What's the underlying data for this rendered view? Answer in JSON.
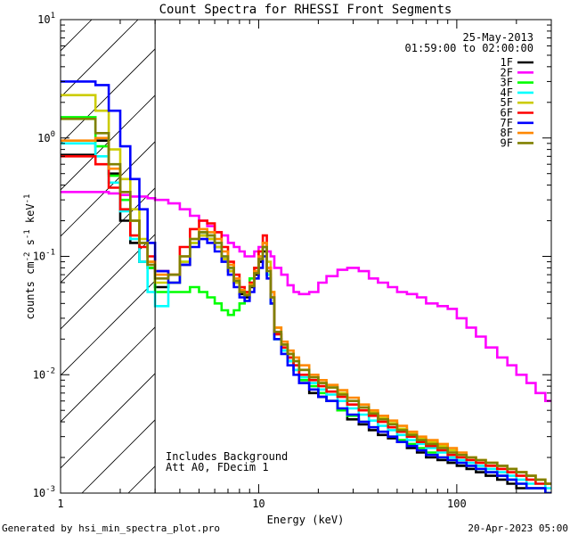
{
  "chart_data": {
    "type": "line",
    "title": "Count Spectra for RHESSI Front Segments",
    "xlabel": "Energy (keV)",
    "ylabel_parts": {
      "prefix": "counts cm",
      "exp1": "-2",
      "mid": " s",
      "exp2": "-1",
      "suffix": " keV",
      "exp3": "-1"
    },
    "x_scale": "log",
    "y_scale": "log",
    "xlim": [
      1,
      300
    ],
    "ylim": [
      0.001,
      10
    ],
    "x_ticks": [
      1,
      10,
      100
    ],
    "x_tick_labels": [
      "1",
      "10",
      "100"
    ],
    "y_ticks": [
      0.001,
      0.01,
      0.1,
      1,
      10
    ],
    "y_tick_base": "10",
    "y_tick_exps": [
      "-3",
      "-2",
      "-1",
      "0",
      "1"
    ],
    "date": "25-May-2013",
    "time_range": "01:59:00 to 02:00:00",
    "attenuator_cutoff_kev": 3,
    "annotations": [
      "Includes Background",
      "Att A0, FDecim 1"
    ],
    "footer_left": "Generated by hsi_min_spectra_plot.pro",
    "footer_right": "20-Apr-2023 05:00",
    "energies": [
      1.0,
      1.5,
      1.5,
      1.75,
      2,
      2.25,
      2.5,
      2.75,
      3,
      3.5,
      4,
      4.5,
      5,
      5.5,
      6,
      6.5,
      7,
      7.5,
      8,
      8.5,
      9,
      9.5,
      10,
      10.5,
      11,
      11.5,
      12,
      13,
      14,
      15,
      16,
      18,
      20,
      22,
      25,
      28,
      32,
      36,
      40,
      45,
      50,
      56,
      63,
      70,
      80,
      90,
      100,
      112,
      125,
      140,
      160,
      180,
      200,
      225,
      250,
      280
    ],
    "series": [
      {
        "name": "1F",
        "color": "#000000",
        "values": [
          0.72,
          0.72,
          0.95,
          0.5,
          0.2,
          0.13,
          0.09,
          0.08,
          0.055,
          0.06,
          0.085,
          0.13,
          0.15,
          0.14,
          0.12,
          0.095,
          0.075,
          0.06,
          0.048,
          0.045,
          0.055,
          0.07,
          0.09,
          0.11,
          0.07,
          0.04,
          0.022,
          0.016,
          0.013,
          0.011,
          0.009,
          0.007,
          0.0065,
          0.006,
          0.005,
          0.0042,
          0.0038,
          0.0034,
          0.0031,
          0.0029,
          0.0027,
          0.0024,
          0.0022,
          0.002,
          0.0019,
          0.0018,
          0.0017,
          0.0016,
          0.0015,
          0.0014,
          0.0013,
          0.0012,
          0.0011,
          0.0011,
          0.0011,
          0.001
        ]
      },
      {
        "name": "2F",
        "color": "#ff00ff",
        "values": [
          0.35,
          0.35,
          0.35,
          0.34,
          0.33,
          0.32,
          0.32,
          0.31,
          0.3,
          0.28,
          0.25,
          0.22,
          0.2,
          0.18,
          0.16,
          0.15,
          0.13,
          0.12,
          0.11,
          0.1,
          0.1,
          0.11,
          0.12,
          0.13,
          0.11,
          0.1,
          0.08,
          0.07,
          0.057,
          0.05,
          0.048,
          0.05,
          0.06,
          0.068,
          0.077,
          0.08,
          0.075,
          0.065,
          0.06,
          0.055,
          0.05,
          0.048,
          0.045,
          0.04,
          0.038,
          0.036,
          0.03,
          0.025,
          0.021,
          0.017,
          0.014,
          0.012,
          0.01,
          0.0085,
          0.007,
          0.006
        ]
      },
      {
        "name": "3F",
        "color": "#00ff00",
        "values": [
          1.5,
          1.5,
          0.85,
          0.48,
          0.3,
          0.2,
          0.13,
          0.08,
          0.05,
          0.05,
          0.05,
          0.055,
          0.05,
          0.045,
          0.04,
          0.035,
          0.032,
          0.035,
          0.04,
          0.05,
          0.065,
          0.08,
          0.1,
          0.12,
          0.07,
          0.04,
          0.02,
          0.016,
          0.014,
          0.012,
          0.009,
          0.008,
          0.007,
          0.006,
          0.005,
          0.0045,
          0.004,
          0.0036,
          0.0033,
          0.003,
          0.0028,
          0.0026,
          0.0024,
          0.0022,
          0.002,
          0.0019,
          0.0018,
          0.0017,
          0.0016,
          0.0015,
          0.0014,
          0.0013,
          0.0012,
          0.0011,
          0.0011,
          0.001
        ]
      },
      {
        "name": "4F",
        "color": "#00ffff",
        "values": [
          0.9,
          0.9,
          0.7,
          0.42,
          0.24,
          0.14,
          0.09,
          0.05,
          0.038,
          0.06,
          0.09,
          0.13,
          0.16,
          0.15,
          0.13,
          0.1,
          0.08,
          0.065,
          0.052,
          0.048,
          0.058,
          0.075,
          0.1,
          0.12,
          0.07,
          0.04,
          0.02,
          0.016,
          0.013,
          0.011,
          0.0095,
          0.0085,
          0.0075,
          0.0068,
          0.006,
          0.0052,
          0.0046,
          0.0041,
          0.0037,
          0.0034,
          0.0031,
          0.0028,
          0.0026,
          0.0024,
          0.0022,
          0.002,
          0.0019,
          0.0018,
          0.0017,
          0.0016,
          0.0015,
          0.0014,
          0.0013,
          0.0012,
          0.0012,
          0.0011
        ]
      },
      {
        "name": "5F",
        "color": "#cccc00",
        "values": [
          2.3,
          2.3,
          1.7,
          0.8,
          0.45,
          0.25,
          0.14,
          0.09,
          0.06,
          0.06,
          0.09,
          0.13,
          0.15,
          0.14,
          0.12,
          0.095,
          0.075,
          0.06,
          0.05,
          0.047,
          0.06,
          0.08,
          0.11,
          0.13,
          0.09,
          0.05,
          0.025,
          0.018,
          0.015,
          0.013,
          0.011,
          0.0095,
          0.0085,
          0.0078,
          0.007,
          0.006,
          0.0053,
          0.0048,
          0.0043,
          0.0039,
          0.0035,
          0.0032,
          0.0029,
          0.0027,
          0.0025,
          0.0023,
          0.0021,
          0.002,
          0.0019,
          0.0018,
          0.0017,
          0.0016,
          0.0015,
          0.0014,
          0.0013,
          0.0012
        ]
      },
      {
        "name": "6F",
        "color": "#ff0000",
        "values": [
          0.7,
          0.7,
          0.6,
          0.38,
          0.25,
          0.15,
          0.12,
          0.1,
          0.075,
          0.07,
          0.12,
          0.17,
          0.2,
          0.19,
          0.16,
          0.12,
          0.09,
          0.07,
          0.055,
          0.05,
          0.06,
          0.08,
          0.11,
          0.15,
          0.08,
          0.045,
          0.022,
          0.017,
          0.014,
          0.012,
          0.01,
          0.009,
          0.008,
          0.0072,
          0.0065,
          0.0056,
          0.005,
          0.0045,
          0.004,
          0.0036,
          0.0033,
          0.003,
          0.0027,
          0.0025,
          0.0023,
          0.0021,
          0.002,
          0.0019,
          0.0018,
          0.0017,
          0.0016,
          0.0015,
          0.0014,
          0.0013,
          0.0012,
          0.0012
        ]
      },
      {
        "name": "7F",
        "color": "#0000ff",
        "values": [
          3.0,
          3.0,
          2.8,
          1.7,
          0.85,
          0.45,
          0.25,
          0.13,
          0.075,
          0.06,
          0.085,
          0.12,
          0.14,
          0.13,
          0.11,
          0.09,
          0.07,
          0.055,
          0.045,
          0.042,
          0.05,
          0.065,
          0.08,
          0.1,
          0.065,
          0.04,
          0.02,
          0.015,
          0.012,
          0.01,
          0.0085,
          0.0075,
          0.0065,
          0.006,
          0.0052,
          0.0046,
          0.004,
          0.0036,
          0.0033,
          0.003,
          0.0027,
          0.0025,
          0.0023,
          0.0021,
          0.002,
          0.0019,
          0.0018,
          0.0017,
          0.0016,
          0.0015,
          0.0014,
          0.0013,
          0.0012,
          0.0011,
          0.0011,
          0.001
        ]
      },
      {
        "name": "8F",
        "color": "#ff8800",
        "values": [
          0.95,
          0.95,
          1.0,
          0.55,
          0.35,
          0.2,
          0.13,
          0.09,
          0.07,
          0.07,
          0.1,
          0.14,
          0.17,
          0.16,
          0.14,
          0.11,
          0.085,
          0.065,
          0.052,
          0.048,
          0.058,
          0.075,
          0.1,
          0.13,
          0.08,
          0.05,
          0.025,
          0.019,
          0.016,
          0.014,
          0.012,
          0.01,
          0.009,
          0.0082,
          0.0074,
          0.0064,
          0.0056,
          0.005,
          0.0045,
          0.0041,
          0.0037,
          0.0033,
          0.003,
          0.0028,
          0.0026,
          0.0024,
          0.0022,
          0.002,
          0.0019,
          0.0018,
          0.0017,
          0.0016,
          0.0015,
          0.0014,
          0.0013,
          0.0012
        ]
      },
      {
        "name": "9F",
        "color": "#808000",
        "values": [
          1.45,
          1.45,
          1.1,
          0.6,
          0.35,
          0.2,
          0.13,
          0.085,
          0.065,
          0.07,
          0.1,
          0.14,
          0.16,
          0.15,
          0.13,
          0.1,
          0.08,
          0.062,
          0.05,
          0.047,
          0.056,
          0.072,
          0.095,
          0.12,
          0.075,
          0.045,
          0.023,
          0.018,
          0.015,
          0.013,
          0.011,
          0.0095,
          0.0085,
          0.0078,
          0.0068,
          0.006,
          0.0053,
          0.0047,
          0.0042,
          0.0038,
          0.0034,
          0.0031,
          0.0028,
          0.0026,
          0.0024,
          0.0022,
          0.0021,
          0.002,
          0.0019,
          0.0018,
          0.0017,
          0.0016,
          0.0015,
          0.0014,
          0.0013,
          0.0012
        ]
      }
    ]
  }
}
